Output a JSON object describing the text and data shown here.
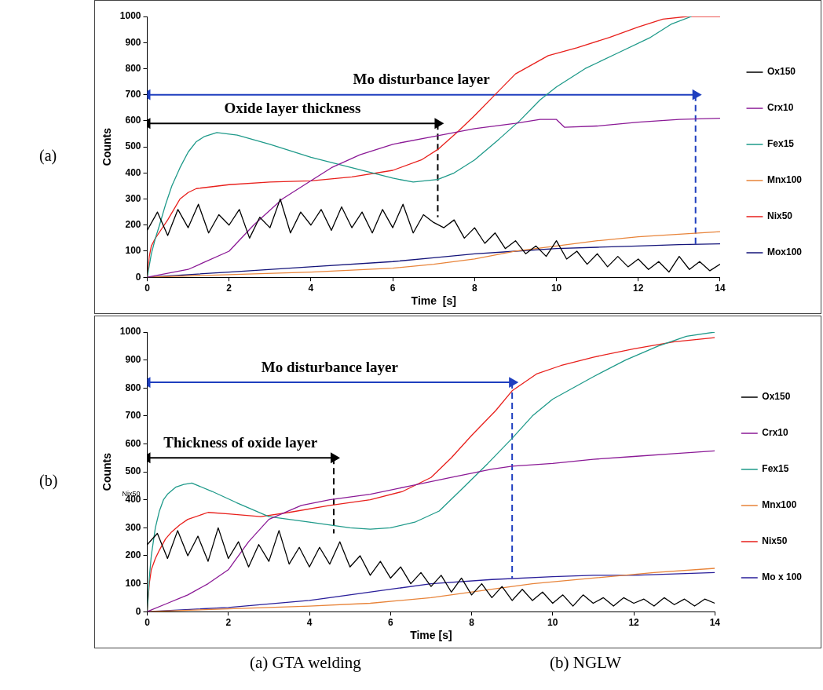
{
  "chart_data": [
    {
      "type": "line",
      "title": "(a)",
      "xlabel": "Time  [s]",
      "ylabel": "Counts",
      "xlim": [
        0,
        14
      ],
      "xticks": [
        0,
        2,
        4,
        6,
        8,
        10,
        12,
        14
      ],
      "ylim": [
        0,
        1000
      ],
      "yticks": [
        0,
        100,
        200,
        300,
        400,
        500,
        600,
        700,
        800,
        900,
        1000
      ],
      "grid": false,
      "legend": "right",
      "marker": "none",
      "annotations": [
        "Mo disturbance layer",
        "Oxide layer thickness",
        "(a) GTA welding"
      ],
      "series": [
        {
          "name": "Ox150",
          "color": "#000000",
          "x": [
            0,
            0.25,
            0.5,
            0.75,
            1,
            1.25,
            1.5,
            1.75,
            2,
            2.25,
            2.5,
            2.75,
            3,
            3.25,
            3.5,
            3.75,
            4,
            4.25,
            4.5,
            4.75,
            5,
            5.25,
            5.5,
            5.75,
            6,
            6.25,
            6.5,
            6.75,
            7,
            7.25,
            7.5,
            7.75,
            8,
            8.25,
            8.5,
            8.75,
            9,
            9.25,
            9.5,
            9.75,
            10,
            10.25,
            10.5,
            10.75,
            11,
            11.25,
            11.5,
            11.75,
            12,
            12.25,
            12.5,
            12.75,
            13,
            13.25,
            13.5,
            13.75,
            14
          ],
          "values": [
            180,
            250,
            160,
            260,
            190,
            280,
            170,
            240,
            200,
            260,
            150,
            230,
            190,
            300,
            170,
            250,
            200,
            260,
            180,
            270,
            190,
            250,
            170,
            260,
            190,
            280,
            170,
            240,
            210,
            190,
            220,
            150,
            190,
            130,
            170,
            110,
            140,
            90,
            120,
            80,
            140,
            70,
            100,
            50,
            90,
            40,
            80,
            40,
            70,
            30,
            60,
            20,
            80,
            30,
            60,
            25,
            50
          ]
        },
        {
          "name": "Crx10",
          "color": "#8b1a96",
          "x": [
            0,
            1,
            2,
            2.6,
            3.3,
            4,
            4.5,
            5.2,
            6,
            7,
            8,
            9,
            9.6,
            10,
            10.2,
            11,
            12,
            13,
            14
          ],
          "values": [
            0,
            30,
            100,
            200,
            300,
            370,
            420,
            470,
            510,
            540,
            570,
            590,
            605,
            605,
            575,
            580,
            595,
            605,
            610
          ]
        },
        {
          "name": "Fex15",
          "color": "#1f9a8a",
          "x": [
            0,
            0.1,
            0.2,
            0.3,
            0.45,
            0.6,
            0.8,
            1,
            1.2,
            1.4,
            1.7,
            2.2,
            3,
            4,
            5,
            6,
            6.5,
            7.1,
            7.5,
            8,
            8.6,
            9.1,
            9.6,
            10,
            10.7,
            11.5,
            12.3,
            12.8,
            13.3
          ],
          "values": [
            0,
            90,
            150,
            200,
            280,
            350,
            420,
            480,
            520,
            540,
            555,
            545,
            510,
            460,
            420,
            380,
            365,
            375,
            400,
            450,
            530,
            600,
            680,
            730,
            800,
            860,
            920,
            970,
            1000
          ]
        },
        {
          "name": "Mnx100",
          "color": "#e8843a",
          "x": [
            0,
            2,
            4,
            6,
            7,
            8,
            9,
            10,
            11,
            12,
            13,
            14
          ],
          "values": [
            0,
            10,
            20,
            35,
            50,
            70,
            100,
            120,
            140,
            155,
            165,
            175
          ]
        },
        {
          "name": "Nix50",
          "color": "#e8201c",
          "x": [
            0,
            0.05,
            0.1,
            0.2,
            0.35,
            0.5,
            0.65,
            0.8,
            1,
            1.2,
            2,
            3,
            4,
            5,
            6,
            6.7,
            7.1,
            7.6,
            8,
            8.5,
            9,
            9.8,
            10.5,
            11.3,
            12,
            12.6,
            13.2,
            14
          ],
          "values": [
            0,
            80,
            120,
            150,
            185,
            220,
            260,
            300,
            325,
            340,
            355,
            365,
            370,
            385,
            410,
            450,
            490,
            560,
            620,
            700,
            780,
            850,
            880,
            920,
            960,
            990,
            1000,
            1000
          ]
        },
        {
          "name": "Mox100",
          "color": "#14147a",
          "x": [
            0,
            2,
            4,
            6,
            7,
            8,
            9,
            10,
            11,
            12,
            13,
            14
          ],
          "values": [
            0,
            20,
            40,
            60,
            75,
            90,
            100,
            110,
            115,
            120,
            125,
            128
          ]
        },
        {
          "color": "#1f3fbf",
          "marker": "triangle",
          "x": [
            0,
            13.4
          ],
          "values": [
            700,
            700
          ]
        },
        {
          "color": "#1f3fbf",
          "line_style": "dashed",
          "x": [
            13.4,
            13.4
          ],
          "values": [
            700,
            120
          ]
        },
        {
          "color": "#000000",
          "marker": "triangle",
          "x": [
            0,
            7.1
          ],
          "values": [
            590,
            590
          ]
        },
        {
          "color": "#000000",
          "line_style": "dashed",
          "x": [
            7.1,
            7.1
          ],
          "values": [
            590,
            230
          ]
        }
      ]
    },
    {
      "type": "line",
      "title": "(b)",
      "xlabel": "Time [s]",
      "ylabel": "Counts",
      "xlim": [
        0,
        14
      ],
      "xticks": [
        0,
        2,
        4,
        6,
        8,
        10,
        12,
        14
      ],
      "ylim": [
        0,
        1000
      ],
      "yticks": [
        0,
        100,
        200,
        300,
        400,
        500,
        600,
        700,
        800,
        900,
        1000
      ],
      "grid": false,
      "legend": "right",
      "marker": "none",
      "annotations": [
        "Mo disturbance layer",
        "Thickness of oxide layer",
        "Nix50",
        "(b) NGLW"
      ],
      "series": [
        {
          "name": "Ox150",
          "color": "#000000",
          "x": [
            0,
            0.25,
            0.5,
            0.75,
            1,
            1.25,
            1.5,
            1.75,
            2,
            2.25,
            2.5,
            2.75,
            3,
            3.25,
            3.5,
            3.75,
            4,
            4.25,
            4.5,
            4.75,
            5,
            5.25,
            5.5,
            5.75,
            6,
            6.25,
            6.5,
            6.75,
            7,
            7.25,
            7.5,
            7.75,
            8,
            8.25,
            8.5,
            8.75,
            9,
            9.25,
            9.5,
            9.75,
            10,
            10.25,
            10.5,
            10.75,
            11,
            11.25,
            11.5,
            11.75,
            12,
            12.25,
            12.5,
            12.75,
            13,
            13.25,
            13.5,
            13.75,
            14
          ],
          "values": [
            240,
            280,
            190,
            290,
            200,
            270,
            180,
            300,
            190,
            250,
            160,
            240,
            180,
            290,
            170,
            230,
            160,
            230,
            170,
            250,
            160,
            200,
            130,
            180,
            120,
            160,
            100,
            140,
            90,
            130,
            70,
            120,
            60,
            100,
            50,
            90,
            40,
            80,
            40,
            70,
            30,
            60,
            20,
            60,
            30,
            50,
            20,
            50,
            30,
            45,
            20,
            50,
            25,
            45,
            20,
            45,
            30
          ]
        },
        {
          "name": "Crx10",
          "color": "#8b1a96",
          "x": [
            0,
            0.5,
            1,
            1.5,
            2,
            2.5,
            3,
            3.8,
            4.5,
            5.5,
            6.5,
            7.5,
            8.5,
            9,
            10,
            11,
            12,
            13,
            14
          ],
          "values": [
            0,
            30,
            60,
            100,
            150,
            250,
            330,
            380,
            400,
            420,
            450,
            480,
            510,
            520,
            530,
            545,
            555,
            565,
            575
          ]
        },
        {
          "name": "Fex15",
          "color": "#1f9a8a",
          "x": [
            0,
            0.05,
            0.1,
            0.2,
            0.3,
            0.4,
            0.5,
            0.7,
            0.9,
            1.1,
            1.6,
            2.2,
            3,
            4,
            5,
            5.5,
            6,
            6.6,
            7.2,
            7.7,
            8.4,
            9,
            9.5,
            10,
            11,
            11.8,
            12.6,
            13.3,
            14
          ],
          "values": [
            0,
            120,
            200,
            300,
            360,
            400,
            420,
            445,
            455,
            460,
            430,
            390,
            340,
            320,
            300,
            295,
            300,
            320,
            360,
            430,
            530,
            620,
            700,
            760,
            840,
            900,
            950,
            985,
            1000
          ]
        },
        {
          "name": "Mnx100",
          "color": "#e8843a",
          "x": [
            0,
            2,
            4,
            5.5,
            7,
            8.5,
            9.5,
            11,
            12.5,
            14
          ],
          "values": [
            0,
            10,
            20,
            30,
            50,
            80,
            100,
            120,
            140,
            155
          ]
        },
        {
          "name": "Nix50",
          "color": "#e8201c",
          "x": [
            0,
            0.05,
            0.1,
            0.2,
            0.3,
            0.45,
            0.6,
            0.8,
            1,
            1.5,
            2,
            2.8,
            3.5,
            4.5,
            5.5,
            6.3,
            7,
            7.5,
            8,
            8.6,
            9,
            9.6,
            10.2,
            11,
            12,
            13,
            14
          ],
          "values": [
            0,
            100,
            150,
            190,
            220,
            260,
            285,
            310,
            330,
            355,
            350,
            340,
            355,
            380,
            400,
            430,
            480,
            550,
            630,
            720,
            790,
            850,
            880,
            910,
            940,
            965,
            980
          ]
        },
        {
          "name": "Mo x 100",
          "color": "#2a1f9a",
          "x": [
            0,
            2,
            4,
            6,
            7,
            8.5,
            10,
            11,
            12,
            13,
            14
          ],
          "values": [
            0,
            15,
            40,
            80,
            100,
            115,
            125,
            130,
            130,
            135,
            140
          ]
        },
        {
          "color": "#1f3fbf",
          "marker": "triangle",
          "x": [
            0,
            9
          ],
          "values": [
            820,
            820
          ]
        },
        {
          "color": "#1f3fbf",
          "line_style": "dashed",
          "x": [
            9,
            9
          ],
          "values": [
            820,
            120
          ]
        },
        {
          "color": "#000000",
          "marker": "triangle",
          "x": [
            0,
            4.6
          ],
          "values": [
            550,
            550
          ]
        },
        {
          "color": "#000000",
          "line_style": "dashed",
          "x": [
            4.6,
            4.6
          ],
          "values": [
            550,
            280
          ]
        }
      ]
    }
  ]
}
